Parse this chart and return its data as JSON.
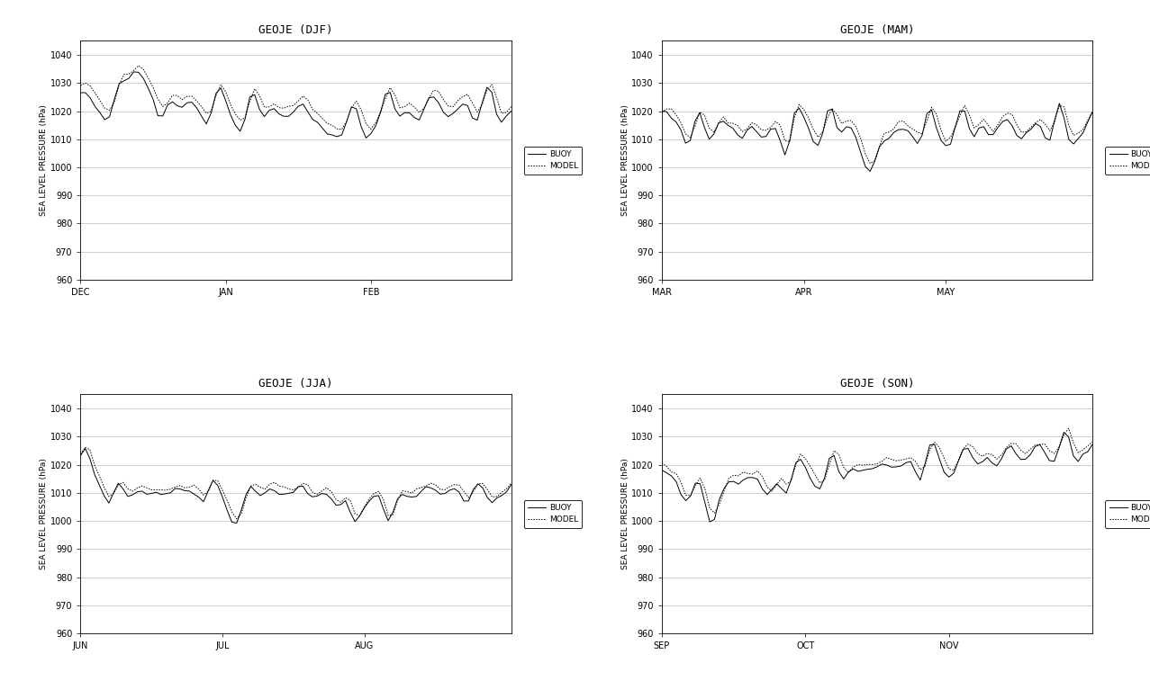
{
  "titles": [
    "GEOJE (DJF)",
    "GEOJE (MAM)",
    "GEOJE (JJA)",
    "GEOJE (SON)"
  ],
  "xlabels": [
    [
      "DEC",
      "JAN",
      "FEB"
    ],
    [
      "MAR",
      "APR",
      "MAY"
    ],
    [
      "JUN",
      "JUL",
      "AUG"
    ],
    [
      "SEP",
      "OCT",
      "NOV"
    ]
  ],
  "ylabel": "SEA LEVEL PRESSURE (hPa)",
  "ylim": [
    960,
    1045
  ],
  "yticks": [
    960,
    970,
    980,
    990,
    1000,
    1010,
    1020,
    1030,
    1040
  ],
  "legend_labels": [
    "BUOY",
    "MODEL"
  ],
  "background_color": "#ffffff",
  "line_color": "#000000",
  "title_fontsize": 9,
  "label_fontsize": 6.5,
  "tick_fontsize": 7
}
